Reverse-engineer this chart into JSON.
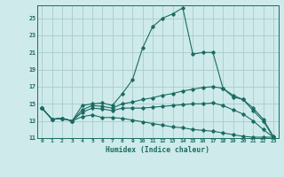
{
  "xlabel": "Humidex (Indice chaleur)",
  "background_color": "#ceeaea",
  "grid_color": "#aacccc",
  "line_color": "#1a6b62",
  "xlim": [
    -0.5,
    23.5
  ],
  "ylim": [
    11,
    26.5
  ],
  "yticks": [
    11,
    13,
    15,
    17,
    19,
    21,
    23,
    25
  ],
  "xticks": [
    0,
    1,
    2,
    3,
    4,
    5,
    6,
    7,
    8,
    9,
    10,
    11,
    12,
    13,
    14,
    15,
    16,
    17,
    18,
    19,
    20,
    21,
    22,
    23
  ],
  "line1_x": [
    0,
    1,
    2,
    3,
    4,
    5,
    6,
    7,
    8,
    9,
    10,
    11,
    12,
    13,
    14,
    15,
    16,
    17,
    18,
    19,
    20,
    21,
    22,
    23
  ],
  "line1_y": [
    14.5,
    13.2,
    13.3,
    13.0,
    14.8,
    15.0,
    15.1,
    14.8,
    16.2,
    17.8,
    21.5,
    24.0,
    25.0,
    25.5,
    26.2,
    20.8,
    21.0,
    21.0,
    16.8,
    15.8,
    15.5,
    14.2,
    13.0,
    11.1
  ],
  "line2_x": [
    0,
    1,
    2,
    3,
    4,
    5,
    6,
    7,
    8,
    9,
    10,
    11,
    12,
    13,
    14,
    15,
    16,
    17,
    18,
    19,
    20,
    21,
    22,
    23
  ],
  "line2_y": [
    14.5,
    13.2,
    13.3,
    13.0,
    14.3,
    14.8,
    14.7,
    14.5,
    15.0,
    15.2,
    15.5,
    15.7,
    16.0,
    16.2,
    16.5,
    16.7,
    16.9,
    17.0,
    16.8,
    16.0,
    15.5,
    14.5,
    13.2,
    11.2
  ],
  "line3_x": [
    0,
    1,
    2,
    3,
    4,
    5,
    6,
    7,
    8,
    9,
    10,
    11,
    12,
    13,
    14,
    15,
    16,
    17,
    18,
    19,
    20,
    21,
    22,
    23
  ],
  "line3_y": [
    14.5,
    13.2,
    13.3,
    13.0,
    14.0,
    14.5,
    14.4,
    14.2,
    14.5,
    14.5,
    14.5,
    14.6,
    14.7,
    14.8,
    14.9,
    15.0,
    15.0,
    15.1,
    14.8,
    14.3,
    13.8,
    13.0,
    12.0,
    11.1
  ],
  "line4_x": [
    0,
    1,
    2,
    3,
    4,
    5,
    6,
    7,
    8,
    9,
    10,
    11,
    12,
    13,
    14,
    15,
    16,
    17,
    18,
    19,
    20,
    21,
    22,
    23
  ],
  "line4_y": [
    14.5,
    13.2,
    13.3,
    13.0,
    13.5,
    13.7,
    13.4,
    13.4,
    13.3,
    13.1,
    12.9,
    12.7,
    12.5,
    12.3,
    12.2,
    12.0,
    11.9,
    11.8,
    11.6,
    11.4,
    11.2,
    11.1,
    11.1,
    11.1
  ]
}
